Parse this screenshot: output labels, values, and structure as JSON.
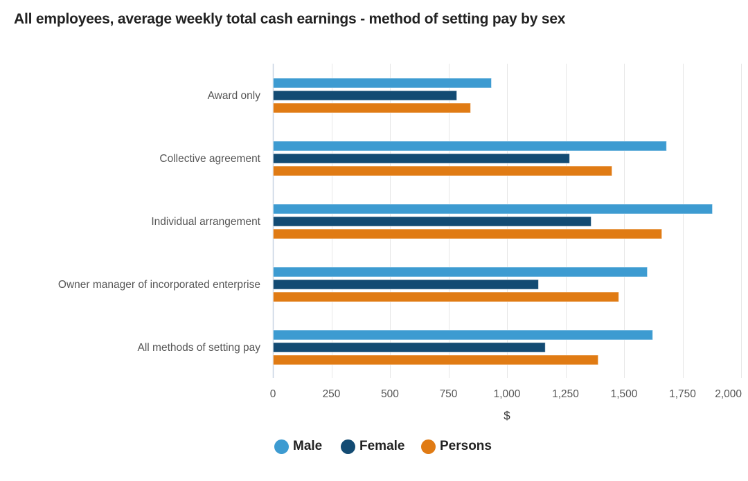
{
  "title": "All employees, average weekly total cash earnings - method of setting pay by sex",
  "chart_data": {
    "type": "bar",
    "orientation": "horizontal",
    "title": "All employees, average weekly total cash earnings - method of setting pay by sex",
    "xlabel": "$",
    "ylabel": "",
    "xlim": [
      0,
      2000
    ],
    "xticks": [
      0,
      250,
      500,
      750,
      1000,
      1250,
      1500,
      1750,
      2000
    ],
    "xtick_labels": [
      "0",
      "250",
      "500",
      "750",
      "1,000",
      "1,250",
      "1,500",
      "1,750",
      "2,000"
    ],
    "grid": "vertical",
    "legend_position": "bottom",
    "categories": [
      "Award only",
      "Collective agreement",
      "Individual arrangement",
      "Owner manager of incorporated enterprise",
      "All methods of setting pay"
    ],
    "series": [
      {
        "name": "Male",
        "color": "#3d9bd1",
        "values": [
          932,
          1680,
          1876,
          1598,
          1621
        ]
      },
      {
        "name": "Female",
        "color": "#134b73",
        "values": [
          784,
          1266,
          1358,
          1133,
          1162
        ]
      },
      {
        "name": "Persons",
        "color": "#e07b14",
        "values": [
          843,
          1447,
          1660,
          1476,
          1388
        ]
      }
    ]
  }
}
